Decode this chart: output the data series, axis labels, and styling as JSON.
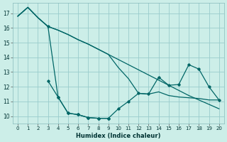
{
  "xlabel": "Humidex (Indice chaleur)",
  "bg_color": "#cceee8",
  "grid_color": "#99cccc",
  "line_color": "#006666",
  "xlim": [
    -0.5,
    20.5
  ],
  "ylim": [
    9.5,
    17.7
  ],
  "xticks": [
    0,
    1,
    2,
    3,
    4,
    5,
    6,
    7,
    8,
    9,
    10,
    11,
    12,
    13,
    14,
    15,
    16,
    17,
    18,
    19,
    20
  ],
  "yticks": [
    10,
    11,
    12,
    13,
    14,
    15,
    16,
    17
  ],
  "line1_x": [
    0,
    1,
    2,
    3,
    4,
    5,
    6,
    7,
    8,
    9,
    10,
    11,
    12,
    13,
    14,
    15,
    16,
    17,
    18,
    19,
    20
  ],
  "line1_y": [
    16.8,
    17.4,
    16.7,
    16.1,
    11.3,
    10.2,
    10.1,
    9.9,
    9.85,
    9.85,
    10.5,
    11.0,
    11.55,
    11.5,
    12.65,
    12.1,
    12.15,
    13.5,
    13.2,
    12.0,
    11.1
  ],
  "line2_x": [
    0,
    1,
    2,
    3,
    4,
    5,
    6,
    7,
    8,
    9,
    10,
    11,
    12,
    13,
    14,
    15,
    16,
    17,
    18,
    19,
    20
  ],
  "line2_y": [
    16.8,
    17.4,
    16.7,
    16.1,
    15.85,
    15.55,
    15.2,
    14.9,
    14.55,
    14.2,
    13.3,
    12.55,
    11.55,
    11.5,
    11.65,
    11.4,
    11.3,
    11.25,
    11.2,
    11.1,
    11.1
  ],
  "line3_x": [
    0,
    1,
    2,
    3,
    4,
    5,
    6,
    7,
    8,
    9,
    10,
    11,
    12,
    13,
    14,
    15,
    16,
    17,
    18,
    19,
    20
  ],
  "line3_y": [
    16.8,
    17.4,
    16.7,
    16.1,
    15.85,
    15.55,
    15.2,
    14.9,
    14.55,
    14.2,
    13.85,
    13.5,
    13.15,
    12.8,
    12.45,
    12.1,
    11.75,
    11.4,
    11.1,
    10.8,
    10.5
  ],
  "line4_x": [
    3,
    4,
    5,
    6,
    7,
    8,
    9
  ],
  "line4_y": [
    12.4,
    11.3,
    10.2,
    10.1,
    9.9,
    9.85,
    9.85
  ]
}
